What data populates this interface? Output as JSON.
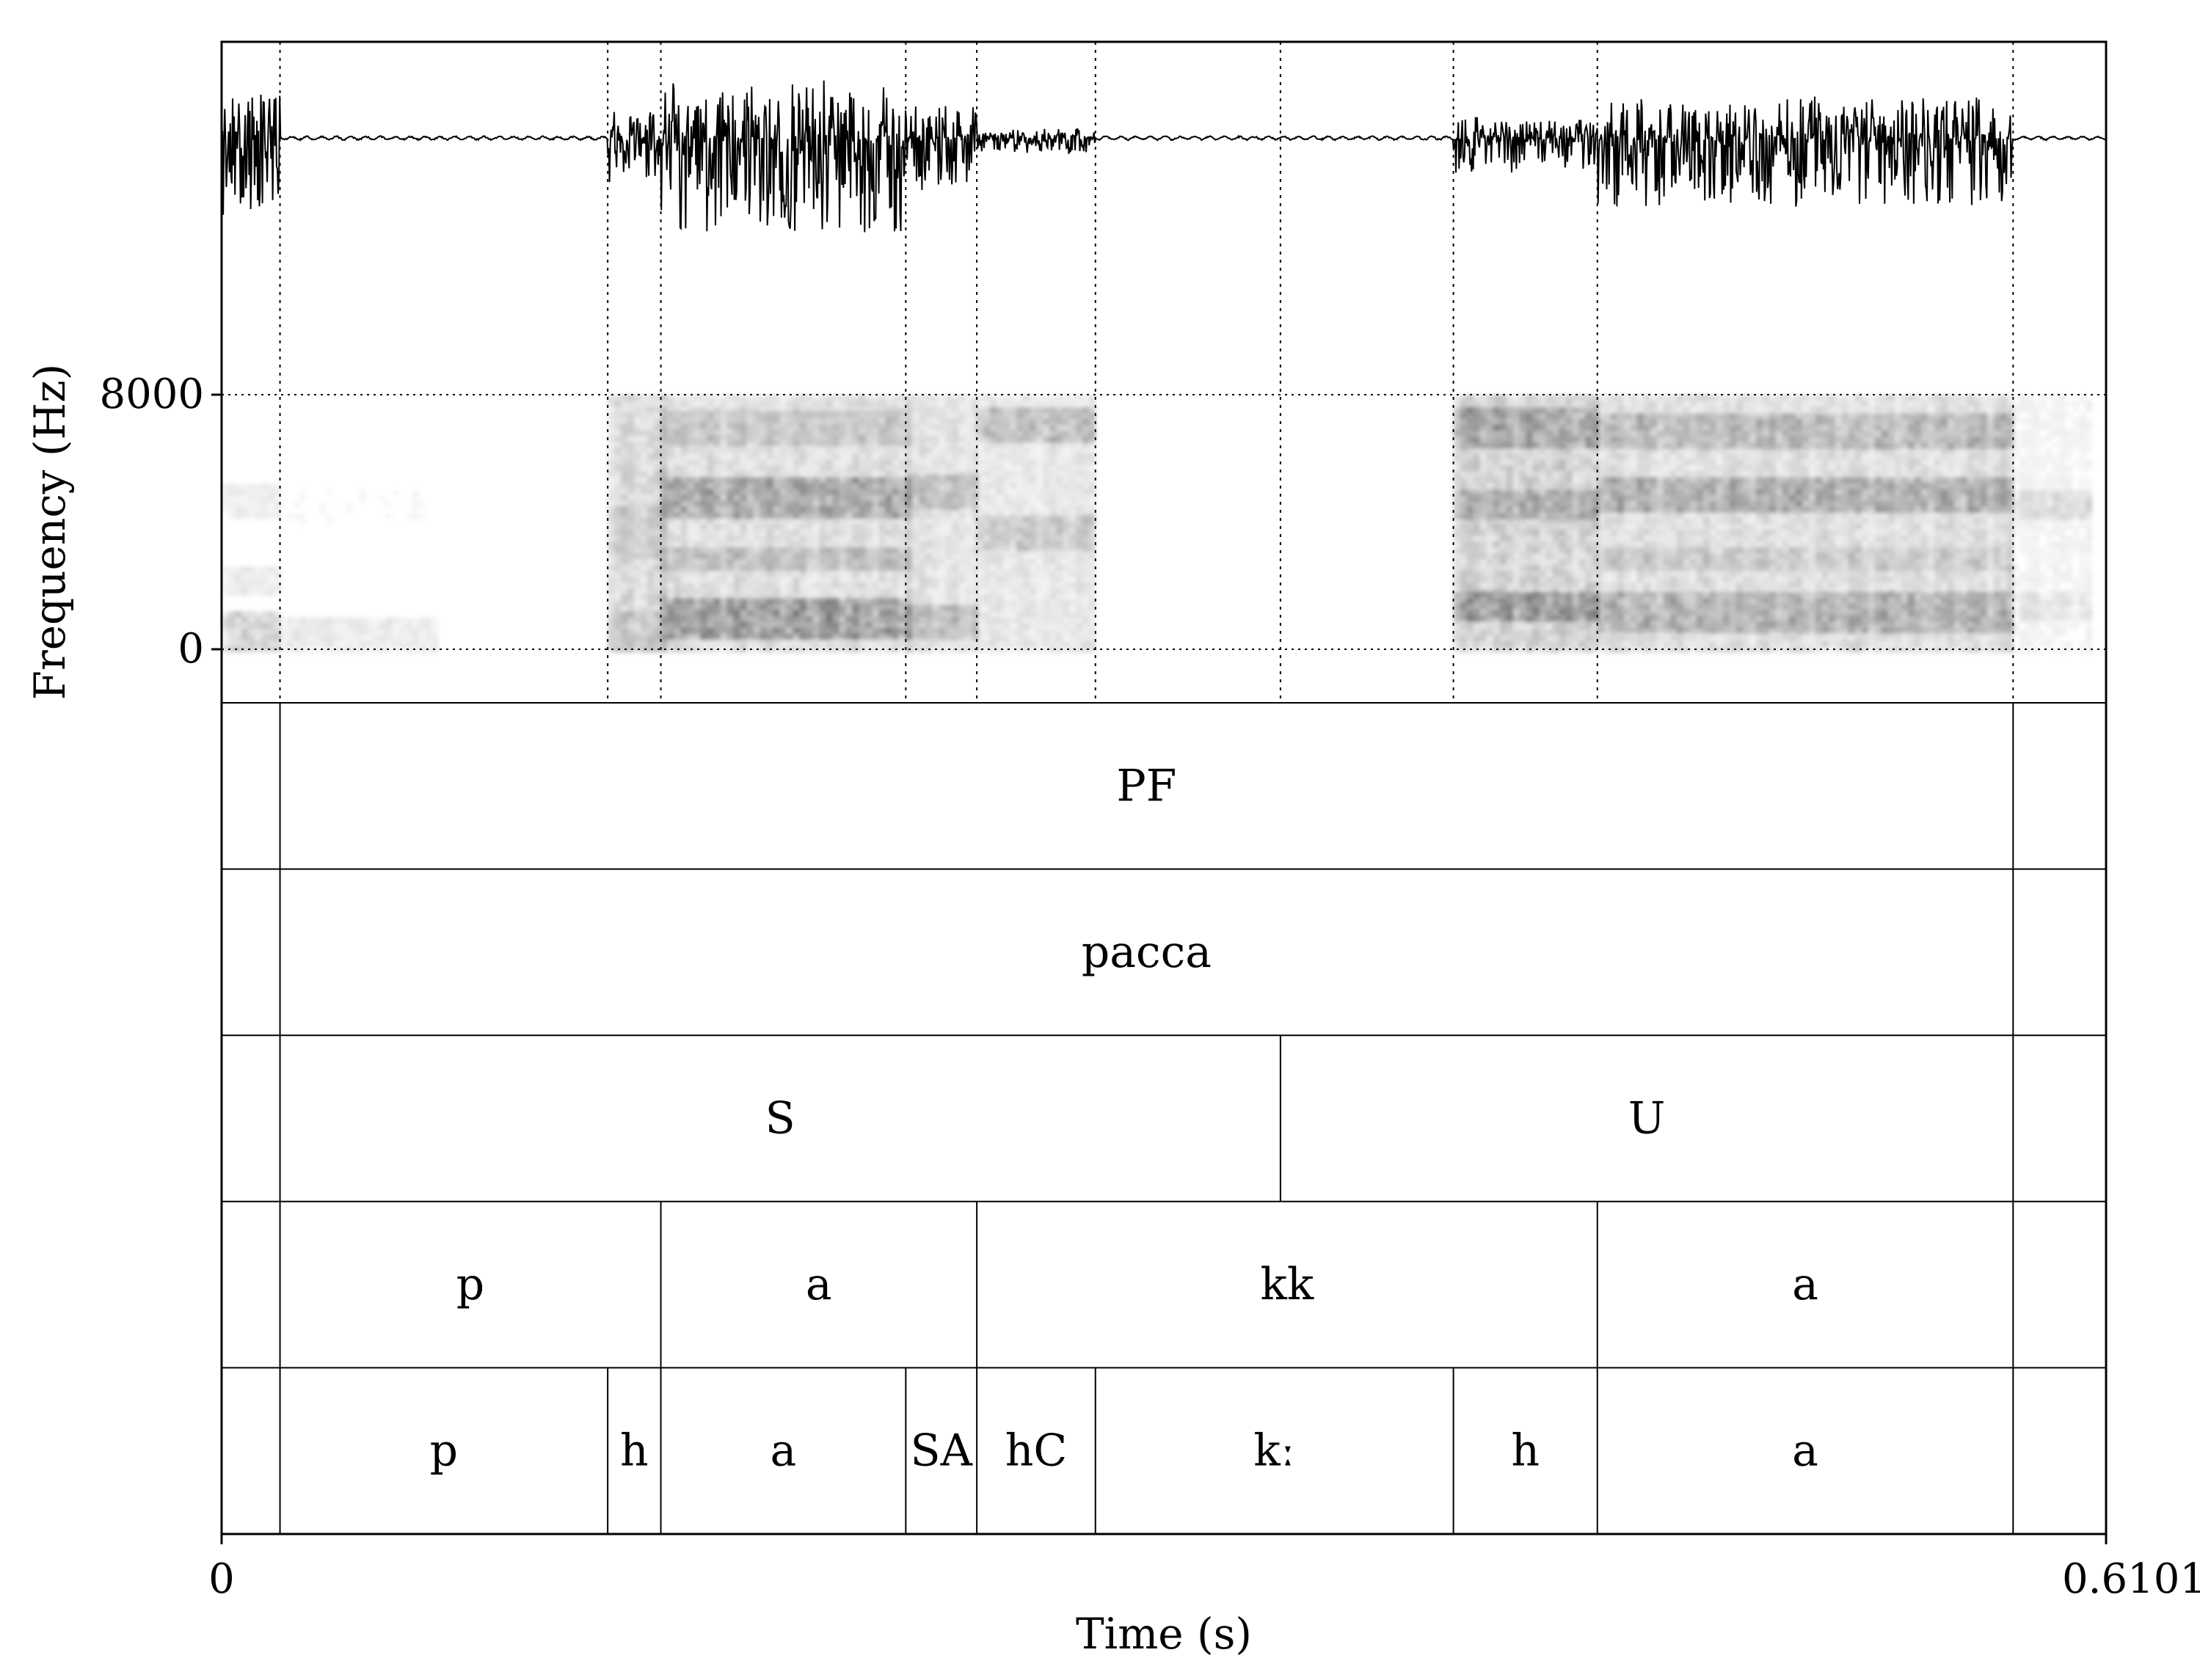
{
  "chart_data": {
    "type": "spectrogram",
    "duration_s": 0.6101,
    "xlabel": "Time (s)",
    "ylabel": "Frequency (Hz)",
    "xlim": [
      0,
      0.6101
    ],
    "ylim": [
      0,
      8000
    ],
    "x_tick_labels": [
      "0",
      "0.6101"
    ],
    "y_tick_labels": [
      "0",
      "8000"
    ],
    "y_ticks": [
      0,
      8000
    ],
    "boundaries_s": [
      0.0189,
      0.125,
      0.1422,
      0.2215,
      0.2445,
      0.2829,
      0.3428,
      0.3988,
      0.4454,
      0.58
    ],
    "tiers": [
      {
        "intervals": [
          {
            "start": 0.0189,
            "end": 0.58,
            "label": "PF"
          }
        ]
      },
      {
        "intervals": [
          {
            "start": 0.0189,
            "end": 0.58,
            "label": "pacca"
          }
        ]
      },
      {
        "intervals": [
          {
            "start": 0.0189,
            "end": 0.3428,
            "label": "S"
          },
          {
            "start": 0.3428,
            "end": 0.58,
            "label": "U"
          }
        ]
      },
      {
        "intervals": [
          {
            "start": 0.0189,
            "end": 0.1422,
            "label": "p"
          },
          {
            "start": 0.1422,
            "end": 0.2445,
            "label": "a"
          },
          {
            "start": 0.2445,
            "end": 0.4454,
            "label": "kk"
          },
          {
            "start": 0.4454,
            "end": 0.58,
            "label": "a"
          }
        ]
      },
      {
        "intervals": [
          {
            "start": 0.0189,
            "end": 0.125,
            "label": "p"
          },
          {
            "start": 0.125,
            "end": 0.1422,
            "label": "h"
          },
          {
            "start": 0.1422,
            "end": 0.2215,
            "label": "a"
          },
          {
            "start": 0.2215,
            "end": 0.2445,
            "label": "SA"
          },
          {
            "start": 0.2445,
            "end": 0.2829,
            "label": "hC"
          },
          {
            "start": 0.2829,
            "end": 0.3988,
            "label": "kː"
          },
          {
            "start": 0.3988,
            "end": 0.4454,
            "label": "h"
          },
          {
            "start": 0.4454,
            "end": 0.58,
            "label": "a"
          }
        ]
      }
    ],
    "waveform_activity": [
      {
        "start": 0.0,
        "end": 0.0189,
        "level": 0.8
      },
      {
        "start": 0.125,
        "end": 0.1422,
        "level": 0.45
      },
      {
        "start": 0.1422,
        "end": 0.2215,
        "level": 1.0
      },
      {
        "start": 0.2215,
        "end": 0.2445,
        "level": 0.55
      },
      {
        "start": 0.2445,
        "end": 0.2829,
        "level": 0.15
      },
      {
        "start": 0.3988,
        "end": 0.4454,
        "level": 0.35
      },
      {
        "start": 0.4454,
        "end": 0.58,
        "level": 0.7
      }
    ],
    "spectrogram_activity": [
      {
        "start": 0.0,
        "end": 0.0189,
        "bands": [
          [
            0,
            1200,
            0.5
          ],
          [
            1800,
            2600,
            0.25
          ],
          [
            4200,
            5200,
            0.2
          ]
        ]
      },
      {
        "start": 0.0189,
        "end": 0.07,
        "bands": [
          [
            0,
            1000,
            0.25
          ],
          [
            4000,
            5000,
            0.08
          ]
        ]
      },
      {
        "start": 0.125,
        "end": 0.1422,
        "bands": [
          [
            0,
            8000,
            0.45
          ],
          [
            0,
            1200,
            0.3
          ],
          [
            3000,
            4500,
            0.25
          ]
        ]
      },
      {
        "start": 0.1422,
        "end": 0.2215,
        "bands": [
          [
            0,
            8000,
            0.4
          ],
          [
            400,
            1600,
            0.9
          ],
          [
            4200,
            5400,
            0.75
          ],
          [
            2500,
            3200,
            0.45
          ],
          [
            6500,
            7500,
            0.35
          ]
        ]
      },
      {
        "start": 0.2215,
        "end": 0.2445,
        "bands": [
          [
            0,
            8000,
            0.35
          ],
          [
            300,
            1400,
            0.55
          ],
          [
            4500,
            5500,
            0.5
          ]
        ]
      },
      {
        "start": 0.2445,
        "end": 0.2829,
        "bands": [
          [
            0,
            8000,
            0.3
          ],
          [
            6500,
            7600,
            0.55
          ],
          [
            3200,
            4200,
            0.4
          ]
        ]
      },
      {
        "start": 0.3988,
        "end": 0.4454,
        "bands": [
          [
            0,
            8000,
            0.55
          ],
          [
            1000,
            1800,
            0.85
          ],
          [
            6400,
            7600,
            0.7
          ],
          [
            4200,
            5000,
            0.6
          ]
        ]
      },
      {
        "start": 0.4454,
        "end": 0.58,
        "bands": [
          [
            0,
            8000,
            0.4
          ],
          [
            600,
            1800,
            0.65
          ],
          [
            4400,
            5400,
            0.7
          ],
          [
            6400,
            7400,
            0.55
          ],
          [
            2600,
            3200,
            0.3
          ]
        ]
      },
      {
        "start": 0.58,
        "end": 0.6101,
        "bands": [
          [
            0,
            8000,
            0.15
          ],
          [
            4200,
            5000,
            0.3
          ],
          [
            1000,
            1800,
            0.2
          ]
        ]
      }
    ]
  }
}
